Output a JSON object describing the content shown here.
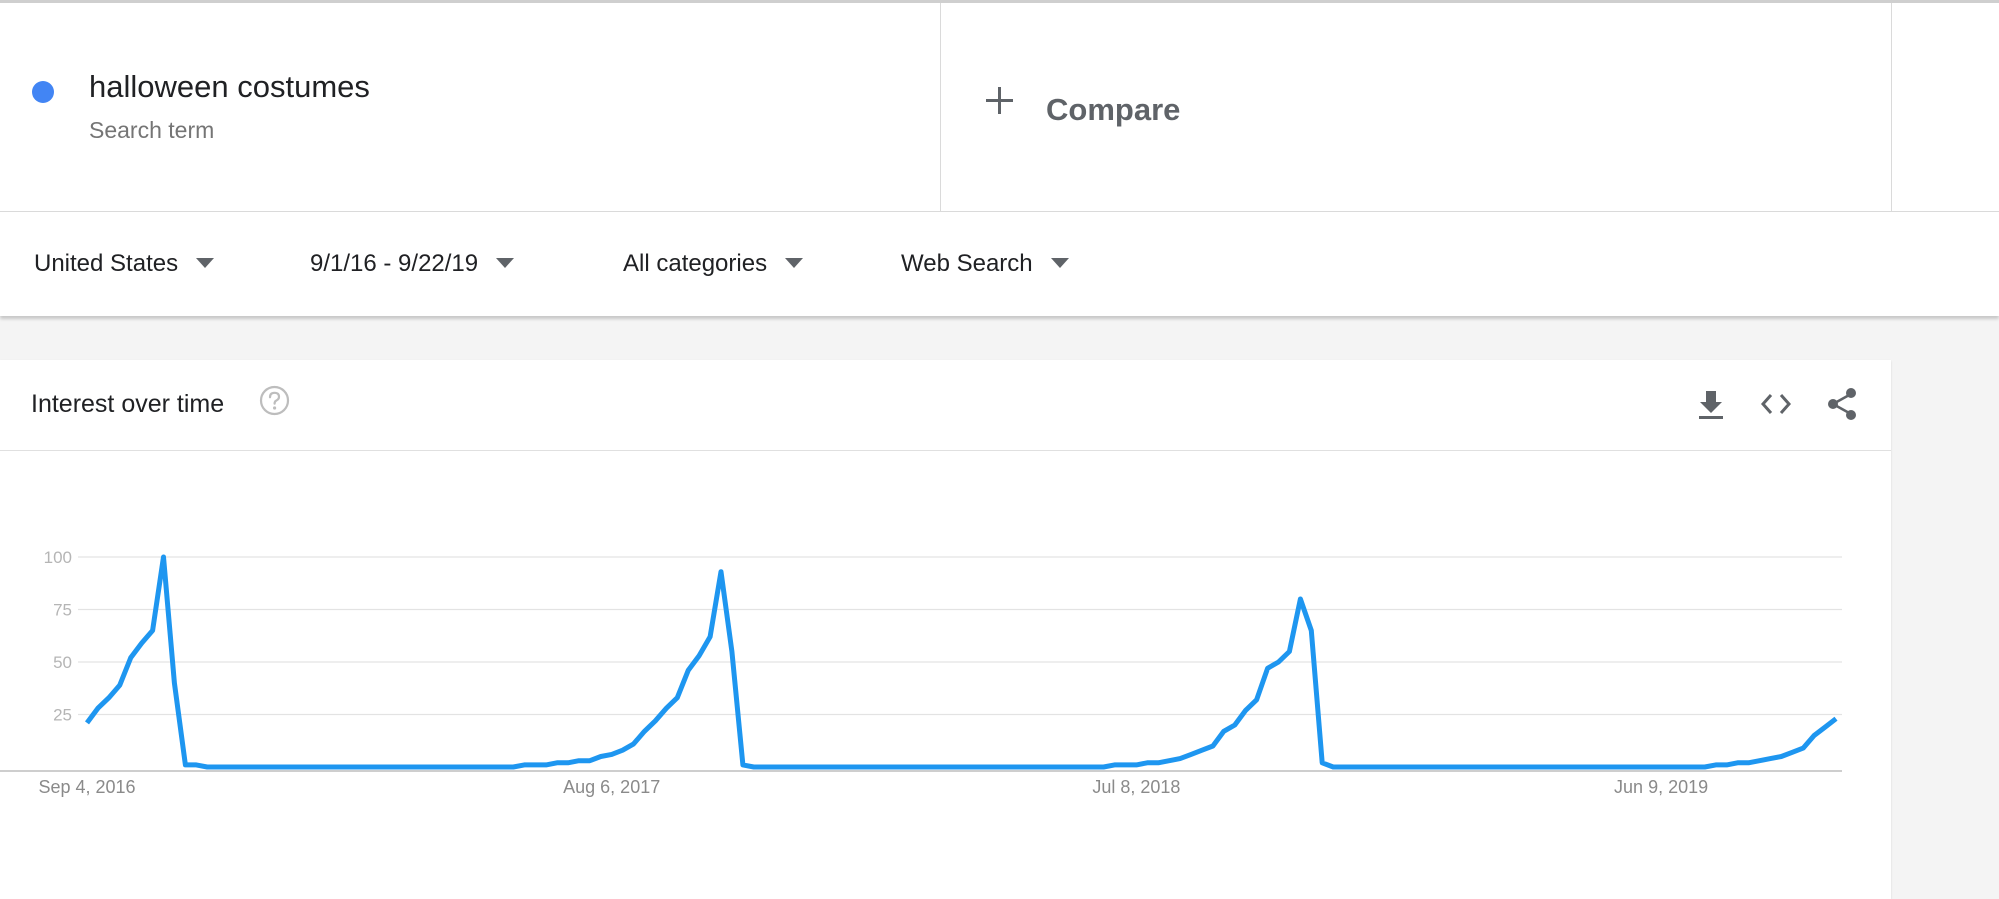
{
  "search_term": {
    "name": "halloween costumes",
    "sub": "Search term",
    "dot_color": "#4285f4"
  },
  "compare": {
    "label": "Compare",
    "icon": "plus-icon"
  },
  "filters": [
    {
      "label": "United States"
    },
    {
      "label": "9/1/16 - 9/22/19"
    },
    {
      "label": "All categories"
    },
    {
      "label": "Web Search"
    }
  ],
  "card": {
    "title": "Interest over time",
    "icons": [
      "help-icon",
      "download-icon",
      "embed-icon",
      "share-icon"
    ]
  },
  "chart_data": {
    "type": "line",
    "title": "",
    "xlabel": "",
    "ylabel": "",
    "ylim": [
      0,
      100
    ],
    "y_ticks": [
      25,
      50,
      75,
      100
    ],
    "x_tick_labels": [
      "Sep 4, 2016",
      "Aug 6, 2017",
      "Jul 8, 2018",
      "Jun 9, 2019"
    ],
    "x_tick_index": [
      0,
      48,
      96,
      144
    ],
    "grid": true,
    "line_color": "#1e96f0",
    "series": [
      {
        "values": [
          21,
          28,
          33,
          39,
          52,
          59,
          65,
          100,
          40,
          1,
          1,
          0,
          0,
          0,
          0,
          0,
          0,
          0,
          0,
          0,
          0,
          0,
          0,
          0,
          0,
          0,
          0,
          0,
          0,
          0,
          0,
          0,
          0,
          0,
          0,
          0,
          0,
          0,
          0,
          0,
          1,
          1,
          1,
          2,
          2,
          3,
          3,
          5,
          6,
          8,
          11,
          17,
          22,
          28,
          33,
          46,
          53,
          62,
          93,
          55,
          1,
          0,
          0,
          0,
          0,
          0,
          0,
          0,
          0,
          0,
          0,
          0,
          0,
          0,
          0,
          0,
          0,
          0,
          0,
          0,
          0,
          0,
          0,
          0,
          0,
          0,
          0,
          0,
          0,
          0,
          0,
          0,
          0,
          0,
          1,
          1,
          1,
          2,
          2,
          3,
          4,
          6,
          8,
          10,
          17,
          20,
          27,
          32,
          47,
          50,
          55,
          80,
          65,
          2,
          0,
          0,
          0,
          0,
          0,
          0,
          0,
          0,
          0,
          0,
          0,
          0,
          0,
          0,
          0,
          0,
          0,
          0,
          0,
          0,
          0,
          0,
          0,
          0,
          0,
          0,
          0,
          0,
          0,
          0,
          0,
          0,
          0,
          0,
          0,
          1,
          1,
          2,
          2,
          3,
          4,
          5,
          7,
          9,
          15,
          19,
          23
        ]
      }
    ]
  }
}
